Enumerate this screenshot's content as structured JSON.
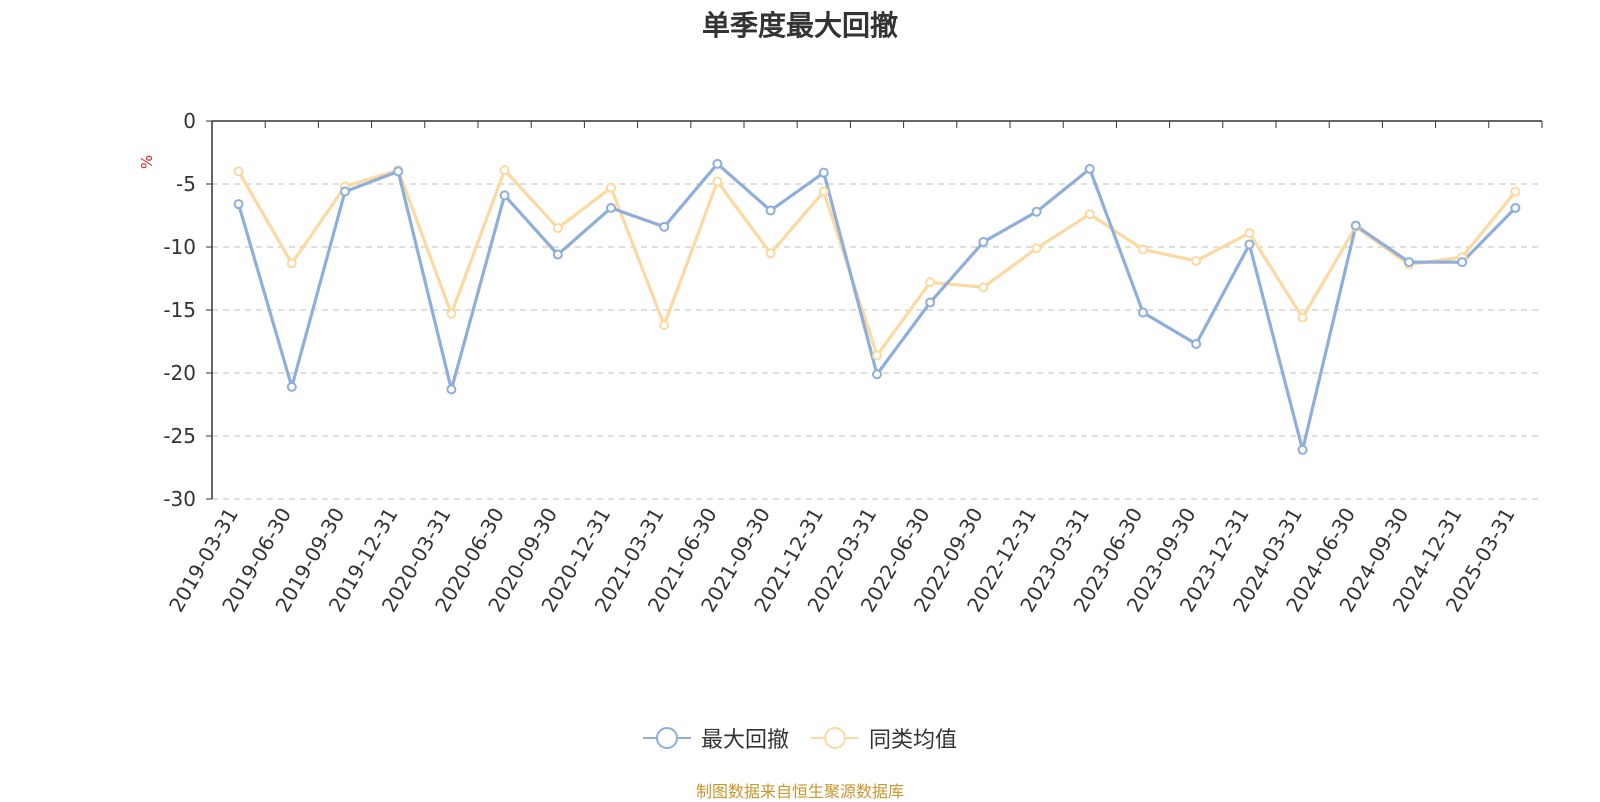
{
  "colors": {
    "series1": "#8eaedb",
    "series2": "#fcd9a0",
    "source": "#c9962b",
    "unit": "#e0211c"
  },
  "chart_data": {
    "type": "line",
    "title": "单季度最大回撤",
    "ylabel": "%",
    "ylim": [
      -30,
      0
    ],
    "yticks": [
      0,
      -5,
      -10,
      -15,
      -20,
      -25,
      -30
    ],
    "grid": true,
    "legend_position": "bottom",
    "categories": [
      "2019-03-31",
      "2019-06-30",
      "2019-09-30",
      "2019-12-31",
      "2020-03-31",
      "2020-06-30",
      "2020-09-30",
      "2020-12-31",
      "2021-03-31",
      "2021-06-30",
      "2021-09-30",
      "2021-12-31",
      "2022-03-31",
      "2022-06-30",
      "2022-09-30",
      "2022-12-31",
      "2023-03-31",
      "2023-06-30",
      "2023-09-30",
      "2023-12-31",
      "2024-03-31",
      "2024-06-30",
      "2024-09-30",
      "2024-12-31",
      "2025-03-31"
    ],
    "series": [
      {
        "name": "最大回撤",
        "values": [
          -6.6,
          -21.1,
          -5.6,
          -4.0,
          -21.3,
          -5.9,
          -10.6,
          -6.9,
          -8.4,
          -3.4,
          -7.1,
          -4.1,
          -20.1,
          -14.4,
          -9.6,
          -7.2,
          -3.8,
          -15.2,
          -17.7,
          -9.8,
          -26.1,
          -8.3,
          -11.2,
          -11.2,
          -6.9
        ]
      },
      {
        "name": "同类均值",
        "values": [
          -4.0,
          -11.3,
          -5.2,
          -3.9,
          -15.3,
          -3.9,
          -8.5,
          -5.3,
          -16.2,
          -4.8,
          -10.5,
          -5.6,
          -18.6,
          -12.8,
          -13.2,
          -10.1,
          -7.4,
          -10.2,
          -11.1,
          -8.9,
          -15.6,
          -8.4,
          -11.4,
          -10.8,
          -5.6
        ]
      }
    ]
  },
  "source_note": "制图数据来自恒生聚源数据库"
}
